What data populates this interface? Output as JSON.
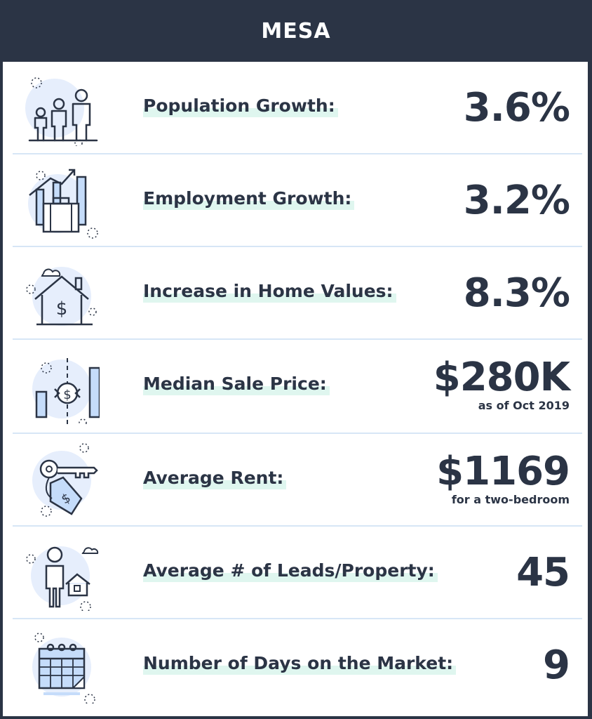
{
  "header": {
    "title": "MESA"
  },
  "colors": {
    "header_bg": "#2b3445",
    "text": "#2b3445",
    "divider": "#d7e6f6",
    "highlight": "#dff6ef",
    "icon_circle": "#e6eefc",
    "icon_fill": "#c5dcfa"
  },
  "stats": [
    {
      "icon": "family-icon",
      "label": "Population Growth:",
      "value": "3.6%",
      "note": ""
    },
    {
      "icon": "briefcase-growth-icon",
      "label": "Employment Growth:",
      "value": "3.2%",
      "note": ""
    },
    {
      "icon": "house-dollar-icon",
      "label": "Increase in Home Values:",
      "value": "8.3%",
      "note": ""
    },
    {
      "icon": "price-chart-icon",
      "label": "Median Sale Price:",
      "value": "$280K",
      "note": "as of Oct 2019"
    },
    {
      "icon": "key-tag-icon",
      "label": "Average Rent:",
      "value": "$1169",
      "note": "for a two-bedroom"
    },
    {
      "icon": "person-house-icon",
      "label": "Average # of Leads/Property:",
      "value": "45",
      "note": ""
    },
    {
      "icon": "calendar-icon",
      "label": "Number of Days on the Market:",
      "value": "9",
      "note": ""
    }
  ]
}
